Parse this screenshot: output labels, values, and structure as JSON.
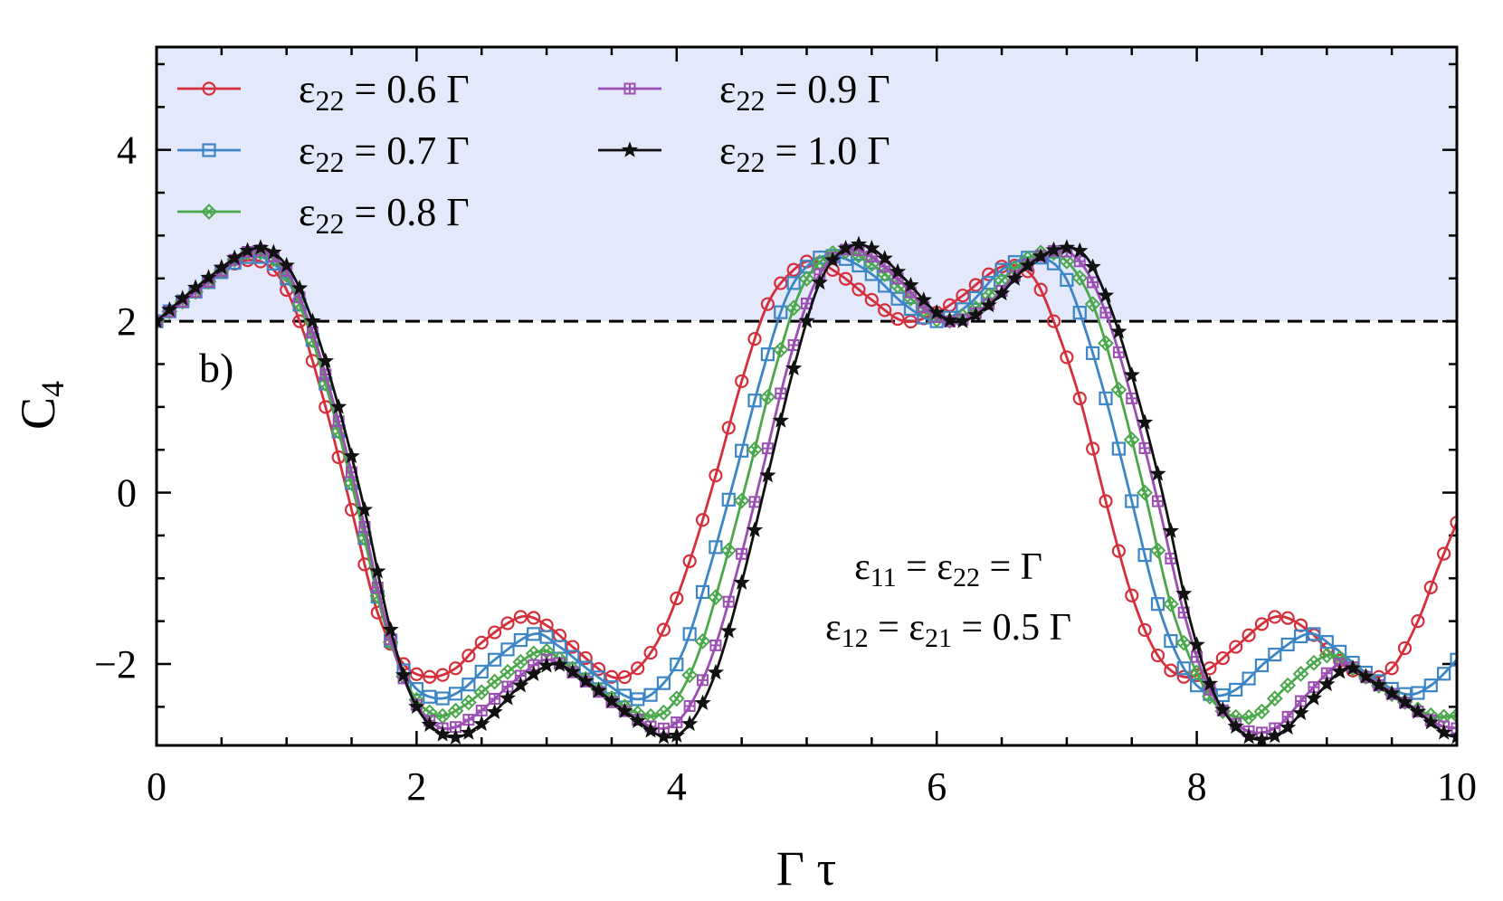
{
  "chart_data": {
    "type": "line",
    "xlabel": "Γ τ",
    "ylabel_main": "C",
    "ylabel_sub": "4",
    "xlim": [
      0,
      10
    ],
    "ylim": [
      -2.95,
      5.2
    ],
    "xticks": [
      0,
      2,
      4,
      6,
      8,
      10
    ],
    "xtick_labels": [
      "0",
      "2",
      "4",
      "6",
      "8",
      "10"
    ],
    "yticks": [
      -2,
      0,
      2,
      4
    ],
    "ytick_labels": [
      "−2",
      "0",
      "2",
      "4"
    ],
    "threshold": 2,
    "shaded_region": [
      2,
      5.2
    ],
    "shade_color": "#e3e8fb",
    "panel_label": "b)",
    "annotation": {
      "line1": {
        "pre": "ε",
        "sub1": "11",
        "mid": " = ε",
        "sub2": "22",
        "post": " = Γ"
      },
      "line2": {
        "pre": "ε",
        "sub1": "12",
        "mid": " = ε",
        "sub2": "21",
        "post": " = 0.5 Γ"
      }
    },
    "legend_position": "top-left",
    "series": [
      {
        "name": "ε22 = 0.6 Γ",
        "label_pre": "ε",
        "label_sub": "22",
        "label_post": " = 0.6 Γ",
        "color": "#d62f3c",
        "marker": "circle",
        "points": [
          [
            0,
            2.0
          ],
          [
            0.35,
            2.4
          ],
          [
            0.65,
            2.7
          ],
          [
            0.9,
            2.6
          ],
          [
            1.1,
            2.0
          ],
          [
            1.3,
            1.0
          ],
          [
            1.5,
            -0.2
          ],
          [
            1.7,
            -1.4
          ],
          [
            1.9,
            -2.0
          ],
          [
            2.1,
            -2.15
          ],
          [
            2.3,
            -2.05
          ],
          [
            2.5,
            -1.75
          ],
          [
            2.8,
            -1.45
          ],
          [
            3.0,
            -1.55
          ],
          [
            3.2,
            -1.8
          ],
          [
            3.5,
            -2.15
          ],
          [
            3.7,
            -2.05
          ],
          [
            3.9,
            -1.6
          ],
          [
            4.1,
            -0.8
          ],
          [
            4.3,
            0.2
          ],
          [
            4.5,
            1.3
          ],
          [
            4.7,
            2.2
          ],
          [
            4.9,
            2.6
          ],
          [
            5.05,
            2.7
          ],
          [
            5.25,
            2.55
          ],
          [
            5.5,
            2.25
          ],
          [
            5.75,
            2.0
          ],
          [
            6.0,
            2.1
          ],
          [
            6.2,
            2.3
          ],
          [
            6.45,
            2.6
          ],
          [
            6.6,
            2.65
          ],
          [
            6.75,
            2.5
          ],
          [
            6.9,
            2.0
          ],
          [
            7.1,
            1.1
          ],
          [
            7.3,
            -0.1
          ],
          [
            7.5,
            -1.2
          ],
          [
            7.7,
            -1.9
          ],
          [
            7.9,
            -2.15
          ],
          [
            8.1,
            -2.05
          ],
          [
            8.3,
            -1.8
          ],
          [
            8.6,
            -1.45
          ],
          [
            8.85,
            -1.6
          ],
          [
            9.05,
            -1.9
          ],
          [
            9.3,
            -2.15
          ],
          [
            9.5,
            -2.05
          ],
          [
            9.7,
            -1.5
          ],
          [
            9.85,
            -0.9
          ],
          [
            10.0,
            -0.35
          ]
        ]
      },
      {
        "name": "ε22 = 0.7 Γ",
        "label_pre": "ε",
        "label_sub": "22",
        "label_post": " = 0.7 Γ",
        "color": "#3d86c6",
        "marker": "square",
        "points": [
          [
            0,
            2.0
          ],
          [
            0.35,
            2.4
          ],
          [
            0.7,
            2.75
          ],
          [
            0.95,
            2.6
          ],
          [
            1.15,
            2.0
          ],
          [
            1.35,
            1.0
          ],
          [
            1.55,
            -0.2
          ],
          [
            1.75,
            -1.5
          ],
          [
            1.95,
            -2.2
          ],
          [
            2.15,
            -2.4
          ],
          [
            2.35,
            -2.3
          ],
          [
            2.6,
            -1.95
          ],
          [
            2.9,
            -1.65
          ],
          [
            3.1,
            -1.8
          ],
          [
            3.35,
            -2.1
          ],
          [
            3.65,
            -2.4
          ],
          [
            3.85,
            -2.3
          ],
          [
            4.05,
            -1.85
          ],
          [
            4.25,
            -0.9
          ],
          [
            4.45,
            0.2
          ],
          [
            4.65,
            1.35
          ],
          [
            4.85,
            2.3
          ],
          [
            5.05,
            2.7
          ],
          [
            5.25,
            2.75
          ],
          [
            5.5,
            2.55
          ],
          [
            5.75,
            2.2
          ],
          [
            6.0,
            2.0
          ],
          [
            6.25,
            2.2
          ],
          [
            6.5,
            2.6
          ],
          [
            6.75,
            2.75
          ],
          [
            6.95,
            2.6
          ],
          [
            7.1,
            2.1
          ],
          [
            7.3,
            1.1
          ],
          [
            7.5,
            -0.1
          ],
          [
            7.7,
            -1.3
          ],
          [
            7.9,
            -2.05
          ],
          [
            8.1,
            -2.35
          ],
          [
            8.3,
            -2.3
          ],
          [
            8.55,
            -1.95
          ],
          [
            8.85,
            -1.65
          ],
          [
            9.05,
            -1.8
          ],
          [
            9.3,
            -2.1
          ],
          [
            9.6,
            -2.35
          ],
          [
            9.8,
            -2.25
          ],
          [
            10.0,
            -1.95
          ]
        ]
      },
      {
        "name": "ε22 = 0.8 Γ",
        "label_pre": "ε",
        "label_sub": "22",
        "label_post": " = 0.8 Γ",
        "color": "#4aa84b",
        "marker": "diamond-x",
        "points": [
          [
            0,
            2.0
          ],
          [
            0.35,
            2.4
          ],
          [
            0.7,
            2.8
          ],
          [
            0.95,
            2.65
          ],
          [
            1.15,
            2.0
          ],
          [
            1.35,
            1.0
          ],
          [
            1.55,
            -0.2
          ],
          [
            1.75,
            -1.5
          ],
          [
            1.95,
            -2.3
          ],
          [
            2.15,
            -2.6
          ],
          [
            2.35,
            -2.5
          ],
          [
            2.65,
            -2.15
          ],
          [
            2.95,
            -1.85
          ],
          [
            3.15,
            -2.0
          ],
          [
            3.45,
            -2.35
          ],
          [
            3.75,
            -2.6
          ],
          [
            3.95,
            -2.5
          ],
          [
            4.15,
            -1.95
          ],
          [
            4.35,
            -0.95
          ],
          [
            4.55,
            0.2
          ],
          [
            4.75,
            1.4
          ],
          [
            4.95,
            2.35
          ],
          [
            5.15,
            2.75
          ],
          [
            5.35,
            2.8
          ],
          [
            5.6,
            2.55
          ],
          [
            5.85,
            2.2
          ],
          [
            6.05,
            2.0
          ],
          [
            6.3,
            2.15
          ],
          [
            6.55,
            2.55
          ],
          [
            6.8,
            2.8
          ],
          [
            7.0,
            2.7
          ],
          [
            7.2,
            2.2
          ],
          [
            7.4,
            1.2
          ],
          [
            7.6,
            0.0
          ],
          [
            7.8,
            -1.3
          ],
          [
            8.0,
            -2.1
          ],
          [
            8.2,
            -2.55
          ],
          [
            8.45,
            -2.6
          ],
          [
            8.7,
            -2.25
          ],
          [
            9.0,
            -1.9
          ],
          [
            9.2,
            -2.05
          ],
          [
            9.5,
            -2.35
          ],
          [
            9.8,
            -2.6
          ],
          [
            10.0,
            -2.6
          ]
        ]
      },
      {
        "name": "ε22 = 0.9 Γ",
        "label_pre": "ε",
        "label_sub": "22",
        "label_post": " = 0.9 Γ",
        "color": "#9b4fb3",
        "marker": "square-plus",
        "points": [
          [
            0,
            2.0
          ],
          [
            0.35,
            2.4
          ],
          [
            0.72,
            2.82
          ],
          [
            0.97,
            2.65
          ],
          [
            1.17,
            2.0
          ],
          [
            1.37,
            1.0
          ],
          [
            1.57,
            -0.2
          ],
          [
            1.77,
            -1.55
          ],
          [
            1.97,
            -2.4
          ],
          [
            2.2,
            -2.75
          ],
          [
            2.45,
            -2.6
          ],
          [
            2.75,
            -2.2
          ],
          [
            3.0,
            -1.95
          ],
          [
            3.25,
            -2.15
          ],
          [
            3.55,
            -2.5
          ],
          [
            3.85,
            -2.75
          ],
          [
            4.05,
            -2.6
          ],
          [
            4.25,
            -2.0
          ],
          [
            4.45,
            -1.0
          ],
          [
            4.65,
            0.2
          ],
          [
            4.85,
            1.45
          ],
          [
            5.05,
            2.4
          ],
          [
            5.25,
            2.8
          ],
          [
            5.45,
            2.8
          ],
          [
            5.7,
            2.5
          ],
          [
            5.95,
            2.1
          ],
          [
            6.15,
            2.0
          ],
          [
            6.4,
            2.2
          ],
          [
            6.65,
            2.6
          ],
          [
            6.9,
            2.82
          ],
          [
            7.1,
            2.7
          ],
          [
            7.3,
            2.1
          ],
          [
            7.5,
            1.1
          ],
          [
            7.7,
            -0.1
          ],
          [
            7.9,
            -1.4
          ],
          [
            8.1,
            -2.3
          ],
          [
            8.35,
            -2.75
          ],
          [
            8.6,
            -2.75
          ],
          [
            8.85,
            -2.35
          ],
          [
            9.1,
            -2.0
          ],
          [
            9.3,
            -2.15
          ],
          [
            9.6,
            -2.45
          ],
          [
            9.85,
            -2.7
          ],
          [
            10.0,
            -2.75
          ]
        ]
      },
      {
        "name": "ε22 = 1.0 Γ",
        "label_pre": "ε",
        "label_sub": "22",
        "label_post": " = 1.0 Γ",
        "color": "#111111",
        "marker": "star",
        "points": [
          [
            0,
            2.0
          ],
          [
            0.35,
            2.45
          ],
          [
            0.75,
            2.85
          ],
          [
            1.0,
            2.65
          ],
          [
            1.2,
            2.0
          ],
          [
            1.4,
            1.0
          ],
          [
            1.6,
            -0.2
          ],
          [
            1.8,
            -1.6
          ],
          [
            2.0,
            -2.5
          ],
          [
            2.25,
            -2.85
          ],
          [
            2.5,
            -2.7
          ],
          [
            2.8,
            -2.25
          ],
          [
            3.05,
            -2.0
          ],
          [
            3.3,
            -2.2
          ],
          [
            3.6,
            -2.55
          ],
          [
            3.9,
            -2.85
          ],
          [
            4.1,
            -2.7
          ],
          [
            4.3,
            -2.1
          ],
          [
            4.5,
            -1.05
          ],
          [
            4.7,
            0.2
          ],
          [
            4.9,
            1.45
          ],
          [
            5.1,
            2.45
          ],
          [
            5.3,
            2.85
          ],
          [
            5.5,
            2.85
          ],
          [
            5.75,
            2.5
          ],
          [
            6.0,
            2.1
          ],
          [
            6.2,
            2.0
          ],
          [
            6.45,
            2.25
          ],
          [
            6.7,
            2.65
          ],
          [
            6.95,
            2.85
          ],
          [
            7.15,
            2.75
          ],
          [
            7.35,
            2.1
          ],
          [
            7.55,
            1.1
          ],
          [
            7.75,
            -0.1
          ],
          [
            7.95,
            -1.5
          ],
          [
            8.15,
            -2.4
          ],
          [
            8.4,
            -2.85
          ],
          [
            8.65,
            -2.8
          ],
          [
            8.9,
            -2.4
          ],
          [
            9.15,
            -2.05
          ],
          [
            9.35,
            -2.2
          ],
          [
            9.65,
            -2.5
          ],
          [
            9.9,
            -2.8
          ],
          [
            10.0,
            -2.85
          ]
        ]
      }
    ]
  }
}
